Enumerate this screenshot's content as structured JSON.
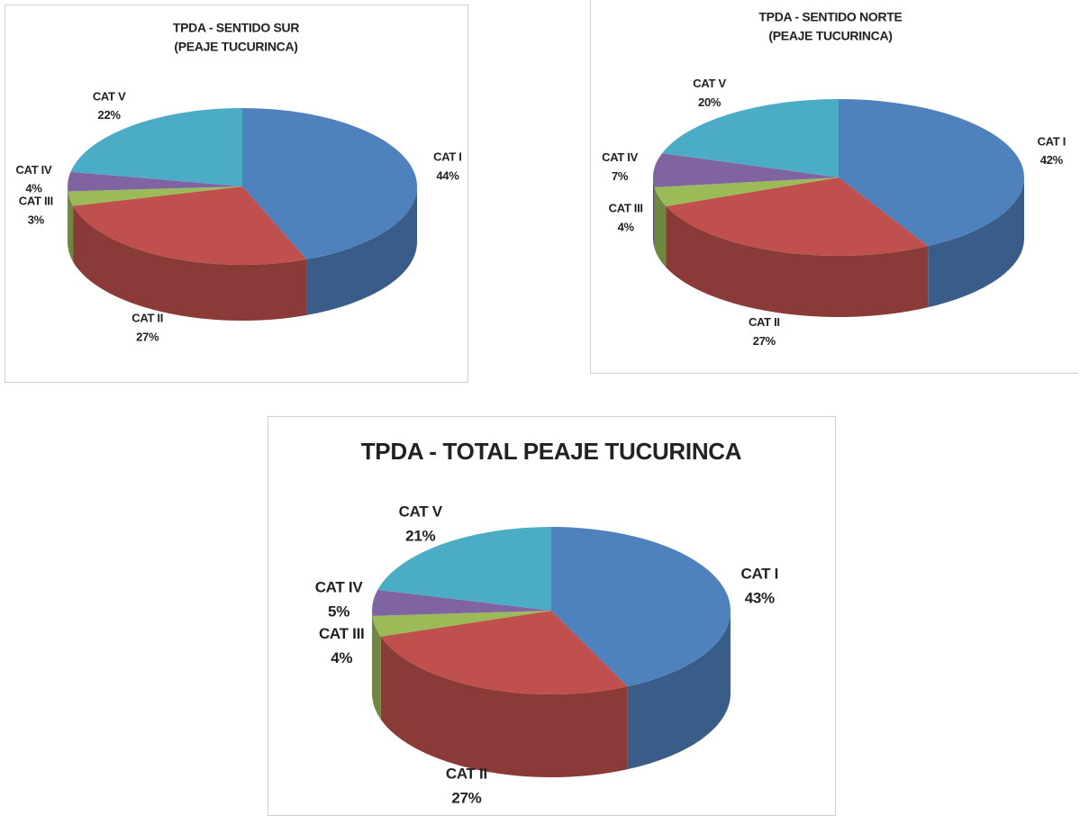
{
  "chart_data": [
    {
      "type": "pie3d",
      "title": [
        "TPDA - SENTIDO SUR",
        "(PEAJE TUCURINCA)"
      ],
      "categories": [
        "CAT I",
        "CAT II",
        "CAT III",
        "CAT IV",
        "CAT V"
      ],
      "values": [
        44,
        27,
        3,
        4,
        22
      ],
      "value_labels": [
        "44%",
        "27%",
        "3%",
        "4%",
        "22%"
      ],
      "colors": [
        "#4f81bd",
        "#c0504d",
        "#9bbb59",
        "#8064a2",
        "#4bacc6"
      ]
    },
    {
      "type": "pie3d",
      "title": [
        "TPDA - SENTIDO NORTE",
        "(PEAJE TUCURINCA)"
      ],
      "categories": [
        "CAT I",
        "CAT II",
        "CAT III",
        "CAT IV",
        "CAT V"
      ],
      "values": [
        42,
        27,
        4,
        7,
        20
      ],
      "value_labels": [
        "42%",
        "27%",
        "4%",
        "7%",
        "20%"
      ],
      "colors": [
        "#4f81bd",
        "#c0504d",
        "#9bbb59",
        "#8064a2",
        "#4bacc6"
      ]
    },
    {
      "type": "pie3d",
      "title": [
        "TPDA - TOTAL PEAJE TUCURINCA"
      ],
      "categories": [
        "CAT I",
        "CAT II",
        "CAT III",
        "CAT IV",
        "CAT V"
      ],
      "values": [
        43,
        27,
        4,
        5,
        21
      ],
      "value_labels": [
        "43%",
        "27%",
        "4%",
        "5%",
        "21%"
      ],
      "colors": [
        "#4f81bd",
        "#c0504d",
        "#9bbb59",
        "#8064a2",
        "#4bacc6"
      ]
    }
  ]
}
